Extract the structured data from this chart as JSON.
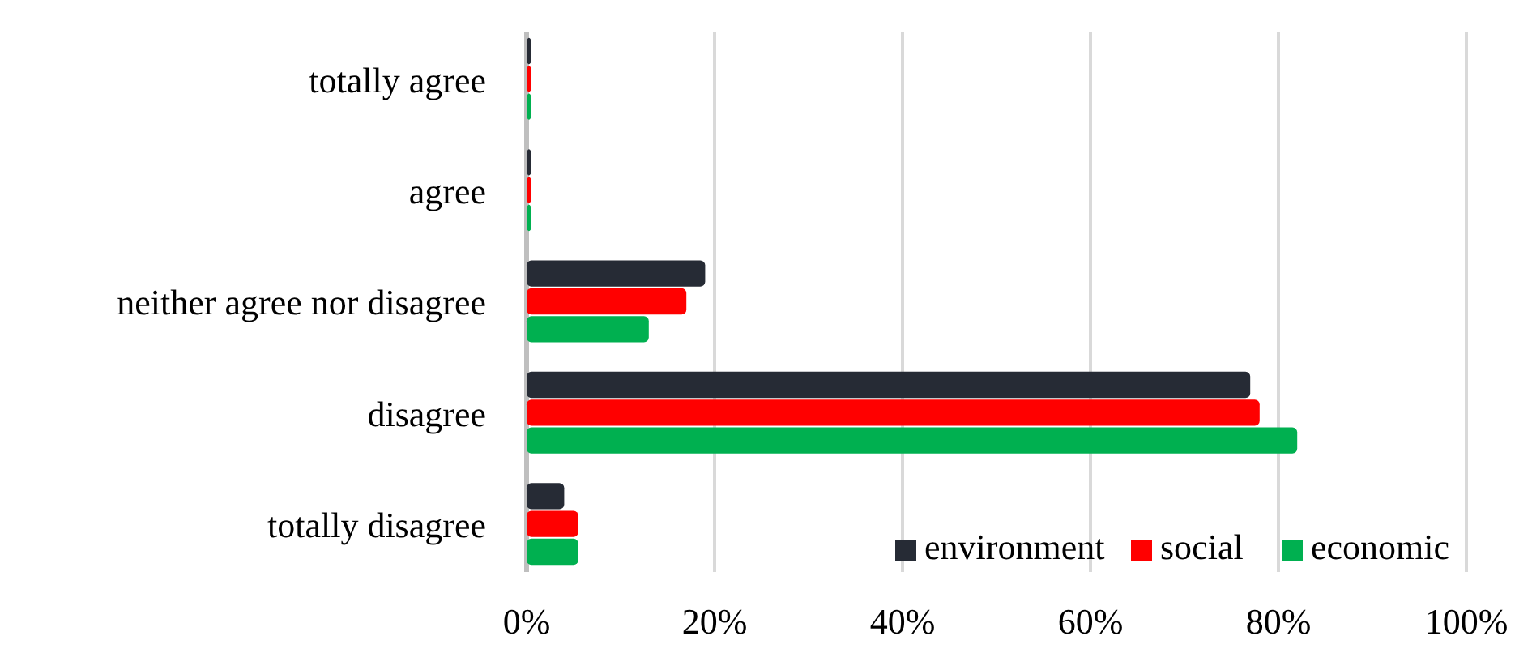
{
  "chart_data": {
    "type": "bar",
    "orientation": "horizontal",
    "categories": [
      "totally agree",
      "agree",
      "neither agree nor disagree",
      "disagree",
      "totally disagree"
    ],
    "series": [
      {
        "name": "environment",
        "color": "#262b35",
        "values": [
          0.5,
          0.5,
          19,
          77,
          4
        ]
      },
      {
        "name": "social",
        "color": "#ff0000",
        "values": [
          0.5,
          0.5,
          17,
          78,
          5.5
        ]
      },
      {
        "name": "economic",
        "color": "#00b050",
        "values": [
          0.5,
          0.5,
          13,
          82,
          5.5
        ]
      }
    ],
    "xlim": [
      0,
      100
    ],
    "xticks": [
      {
        "value": 0,
        "label": "0%"
      },
      {
        "value": 20,
        "label": "20%"
      },
      {
        "value": 40,
        "label": "40%"
      },
      {
        "value": 60,
        "label": "60%"
      },
      {
        "value": 80,
        "label": "80%"
      },
      {
        "value": 100,
        "label": "100%"
      }
    ],
    "grid": "x",
    "legend": "bottom right"
  }
}
